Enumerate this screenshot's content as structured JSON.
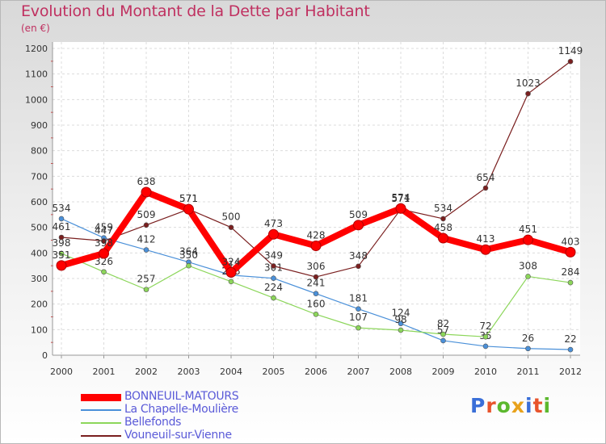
{
  "chart_data": {
    "type": "line",
    "title": "Evolution du Montant de la Dette par Habitant",
    "subtitle": "(en €)",
    "x": [
      "2000",
      "2001",
      "2002",
      "2003",
      "2004",
      "2005",
      "2006",
      "2007",
      "2008",
      "2009",
      "2010",
      "2011",
      "2012"
    ],
    "ylim": [
      0,
      1200
    ],
    "yticks": [
      0,
      100,
      200,
      300,
      400,
      500,
      600,
      700,
      800,
      900,
      1000,
      1100,
      1200
    ],
    "grid": true,
    "legend_position": "bottom-left",
    "series": [
      {
        "name": "BONNEUIL-MATOURS",
        "color": "#ff0000",
        "values": [
          351,
          398,
          638,
          571,
          324,
          473,
          428,
          509,
          574,
          458,
          413,
          451,
          403
        ]
      },
      {
        "name": "La Chapelle-Moulière",
        "color": "#4a90d9",
        "values": [
          534,
          459,
          412,
          364,
          313,
          301,
          241,
          181,
          124,
          57,
          35,
          26,
          22
        ]
      },
      {
        "name": "Bellefonds",
        "color": "#8cd65a",
        "values": [
          398,
          326,
          257,
          350,
          288,
          224,
          160,
          107,
          98,
          82,
          72,
          308,
          284
        ]
      },
      {
        "name": "Vouneuil-sur-Vienne",
        "color": "#7a1f1f",
        "values": [
          461,
          447,
          509,
          571,
          500,
          349,
          306,
          348,
          571,
          534,
          654,
          1023,
          1149
        ]
      }
    ]
  },
  "logo": {
    "letters": [
      "P",
      "r",
      "o",
      "x",
      "i",
      "t",
      "i"
    ],
    "colors": [
      "#3a6fd8",
      "#e8542c",
      "#5cb82e",
      "#e8a21c",
      "#3a6fd8",
      "#e8542c",
      "#5cb82e"
    ]
  }
}
